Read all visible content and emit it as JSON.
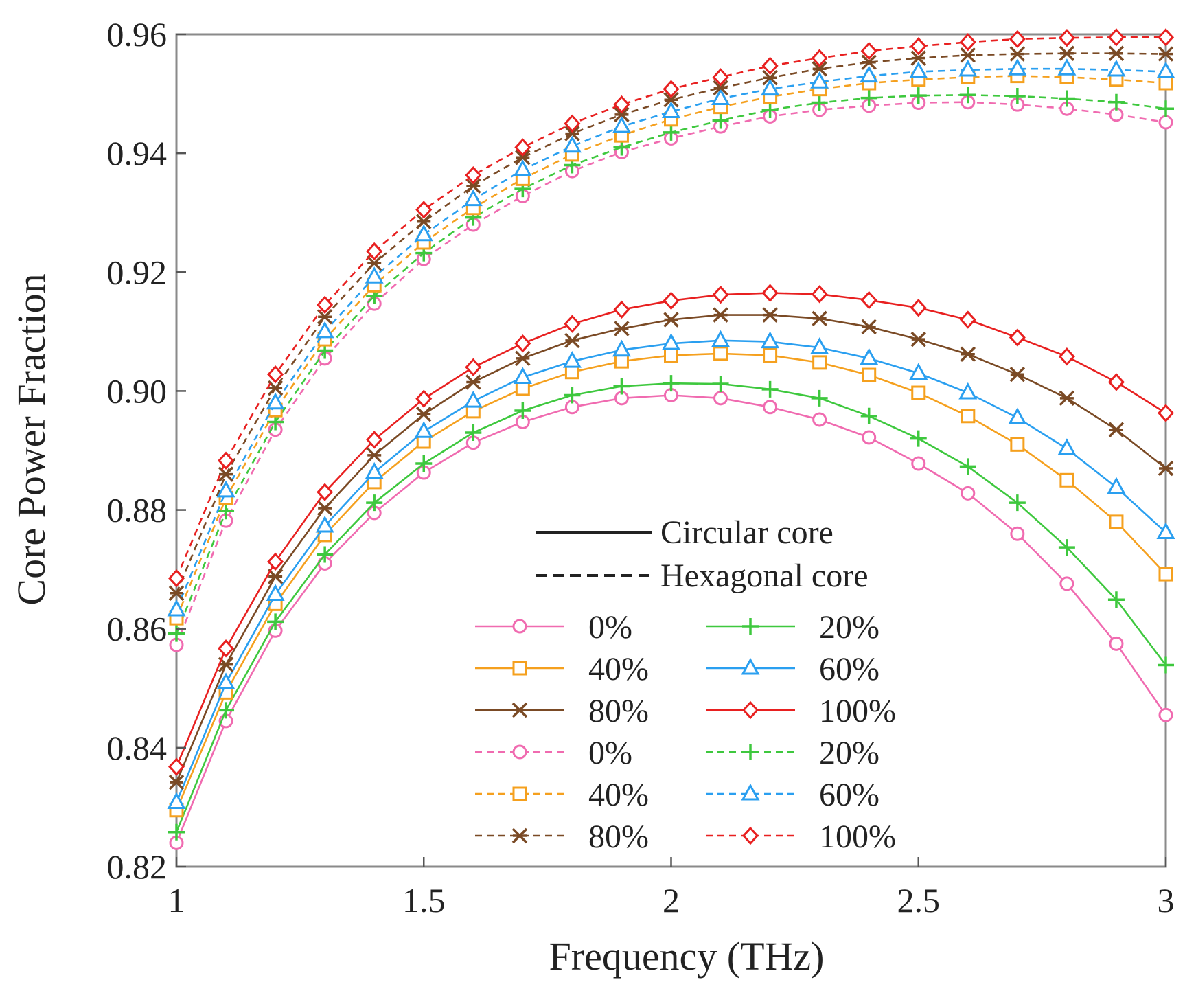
{
  "chart_data": {
    "type": "line",
    "xlabel": "Frequency (THz)",
    "ylabel": "Core Power Fraction",
    "xlim": [
      1,
      3
    ],
    "ylim": [
      0.82,
      0.96
    ],
    "xticks": [
      1,
      1.5,
      2,
      2.5,
      3
    ],
    "xtick_labels": [
      "1",
      "1.5",
      "2",
      "2.5",
      "3"
    ],
    "yticks": [
      0.82,
      0.84,
      0.86,
      0.88,
      0.9,
      0.92,
      0.94,
      0.96
    ],
    "ytick_labels": [
      "0.82",
      "0.84",
      "0.86",
      "0.88",
      "0.90",
      "0.92",
      "0.94",
      "0.96"
    ],
    "grid": false,
    "legend_position": "center-right",
    "x": [
      1.0,
      1.1,
      1.2,
      1.3,
      1.4,
      1.5,
      1.6,
      1.7,
      1.8,
      1.9,
      2.0,
      2.1,
      2.2,
      2.3,
      2.4,
      2.5,
      2.6,
      2.7,
      2.8,
      2.9,
      3.0
    ],
    "series": [
      {
        "name": "0%",
        "core": "circular",
        "color": "#f06bb0",
        "marker": "circle",
        "values": [
          0.824,
          0.8445,
          0.8597,
          0.871,
          0.8795,
          0.8863,
          0.8913,
          0.8948,
          0.8973,
          0.8988,
          0.8993,
          0.8988,
          0.8973,
          0.8952,
          0.8922,
          0.8878,
          0.8828,
          0.876,
          0.8676,
          0.8575,
          0.8455
        ]
      },
      {
        "name": "20%",
        "core": "circular",
        "color": "#3ec83e",
        "marker": "plus",
        "values": [
          0.8258,
          0.8463,
          0.8612,
          0.8725,
          0.8812,
          0.8878,
          0.893,
          0.8967,
          0.8993,
          0.9008,
          0.9013,
          0.9012,
          0.9003,
          0.8988,
          0.8958,
          0.892,
          0.8873,
          0.8812,
          0.8737,
          0.8649,
          0.8539
        ]
      },
      {
        "name": "40%",
        "core": "circular",
        "color": "#f5a01e",
        "marker": "square",
        "values": [
          0.8295,
          0.8493,
          0.8642,
          0.8758,
          0.8847,
          0.8915,
          0.8966,
          0.9004,
          0.9032,
          0.905,
          0.906,
          0.9063,
          0.906,
          0.9048,
          0.9027,
          0.8997,
          0.8958,
          0.891,
          0.885,
          0.878,
          0.8692
        ]
      },
      {
        "name": "60%",
        "core": "circular",
        "color": "#2a9ff0",
        "marker": "triangle",
        "values": [
          0.8308,
          0.8509,
          0.8658,
          0.8773,
          0.8863,
          0.8932,
          0.8983,
          0.9023,
          0.905,
          0.9069,
          0.908,
          0.9085,
          0.9083,
          0.9073,
          0.9055,
          0.903,
          0.8997,
          0.8955,
          0.8903,
          0.8838,
          0.8762
        ]
      },
      {
        "name": "80%",
        "core": "circular",
        "color": "#7a4a25",
        "marker": "star",
        "values": [
          0.8342,
          0.854,
          0.8688,
          0.8803,
          0.8892,
          0.8961,
          0.9015,
          0.9055,
          0.9085,
          0.9105,
          0.912,
          0.9128,
          0.9128,
          0.9122,
          0.9108,
          0.9087,
          0.9062,
          0.9028,
          0.8988,
          0.8935,
          0.887
        ]
      },
      {
        "name": "100%",
        "core": "circular",
        "color": "#e82020",
        "marker": "diamond",
        "values": [
          0.8368,
          0.8567,
          0.8713,
          0.883,
          0.8918,
          0.8987,
          0.904,
          0.908,
          0.9113,
          0.9137,
          0.9152,
          0.9162,
          0.9165,
          0.9163,
          0.9153,
          0.914,
          0.912,
          0.909,
          0.9058,
          0.9015,
          0.8963
        ]
      },
      {
        "name": "0%",
        "core": "hexagonal",
        "color": "#f06bb0",
        "marker": "circle",
        "values": [
          0.8573,
          0.8782,
          0.8935,
          0.9055,
          0.9147,
          0.9222,
          0.928,
          0.9328,
          0.937,
          0.9402,
          0.9425,
          0.9445,
          0.9462,
          0.9473,
          0.948,
          0.9485,
          0.9486,
          0.9482,
          0.9475,
          0.9465,
          0.9452
        ]
      },
      {
        "name": "20%",
        "core": "hexagonal",
        "color": "#3ec83e",
        "marker": "plus",
        "values": [
          0.8592,
          0.8798,
          0.8948,
          0.9068,
          0.916,
          0.9232,
          0.9292,
          0.934,
          0.938,
          0.941,
          0.9435,
          0.9455,
          0.9473,
          0.9485,
          0.9493,
          0.9497,
          0.9498,
          0.9496,
          0.9492,
          0.9486,
          0.9475
        ]
      },
      {
        "name": "40%",
        "core": "hexagonal",
        "color": "#f5a01e",
        "marker": "square",
        "values": [
          0.8618,
          0.882,
          0.8968,
          0.9087,
          0.9178,
          0.925,
          0.9308,
          0.9357,
          0.9398,
          0.943,
          0.9457,
          0.9478,
          0.9495,
          0.9508,
          0.9518,
          0.9524,
          0.9528,
          0.953,
          0.9528,
          0.9524,
          0.9518
        ]
      },
      {
        "name": "60%",
        "core": "hexagonal",
        "color": "#2a9ff0",
        "marker": "triangle",
        "values": [
          0.8632,
          0.8832,
          0.898,
          0.91,
          0.9192,
          0.9263,
          0.9322,
          0.9372,
          0.9412,
          0.9445,
          0.947,
          0.9492,
          0.9508,
          0.952,
          0.953,
          0.9537,
          0.954,
          0.9542,
          0.9542,
          0.954,
          0.9537
        ]
      },
      {
        "name": "80%",
        "core": "hexagonal",
        "color": "#7a4a25",
        "marker": "star",
        "values": [
          0.866,
          0.886,
          0.9005,
          0.9125,
          0.9215,
          0.9285,
          0.9345,
          0.9393,
          0.9433,
          0.9465,
          0.949,
          0.951,
          0.9527,
          0.9542,
          0.9553,
          0.956,
          0.9565,
          0.9567,
          0.9568,
          0.9568,
          0.9567
        ]
      },
      {
        "name": "100%",
        "core": "hexagonal",
        "color": "#e82020",
        "marker": "diamond",
        "values": [
          0.8685,
          0.8883,
          0.9028,
          0.9145,
          0.9235,
          0.9305,
          0.9363,
          0.941,
          0.945,
          0.9482,
          0.9508,
          0.9528,
          0.9547,
          0.956,
          0.9572,
          0.958,
          0.9587,
          0.9592,
          0.9594,
          0.9595,
          0.9595
        ]
      }
    ],
    "legend": {
      "style_entries": [
        {
          "label": "Circular core",
          "line": "solid"
        },
        {
          "label": "Hexagonal core",
          "line": "dashed"
        }
      ]
    }
  }
}
